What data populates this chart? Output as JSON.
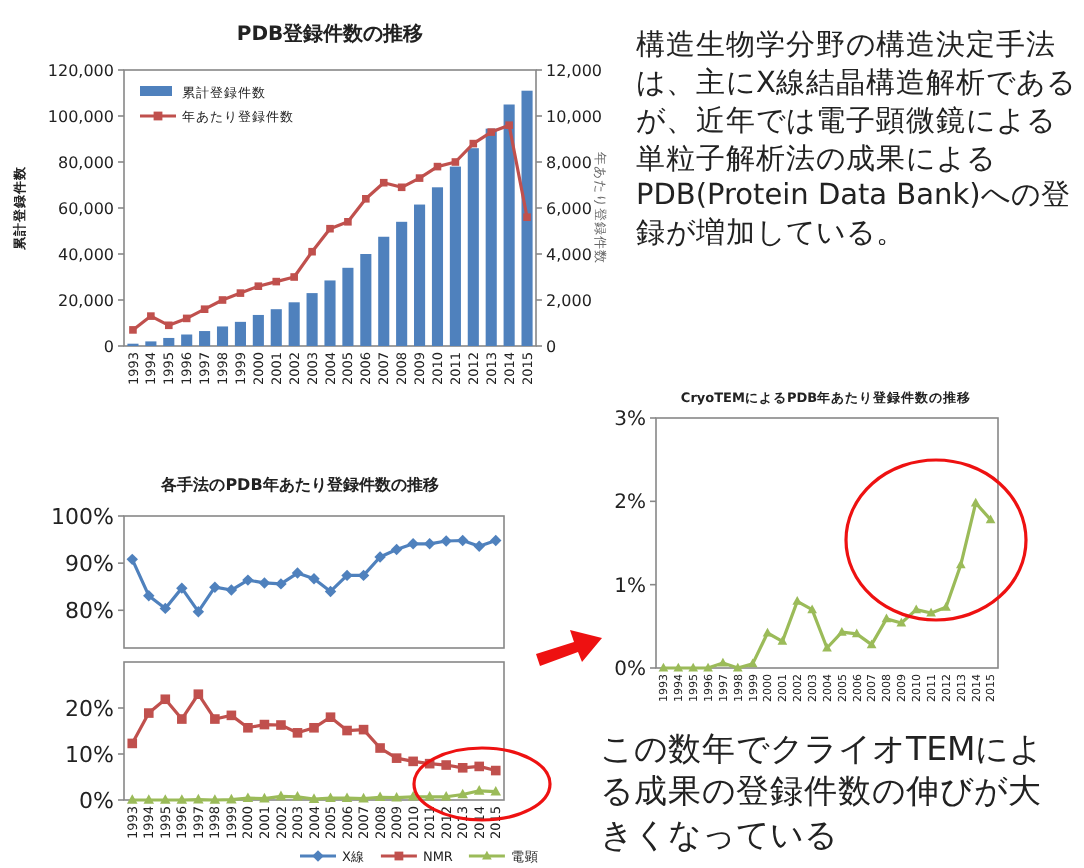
{
  "chart_data": [
    {
      "type": "bar",
      "title": "PDB登録件数の推移",
      "ylabel": "累計登録件数",
      "y2label": "年あたり登録件数",
      "categories": [
        "1993",
        "1994",
        "1995",
        "1996",
        "1997",
        "1998",
        "1999",
        "2000",
        "2001",
        "2002",
        "2003",
        "2004",
        "2005",
        "2006",
        "2007",
        "2008",
        "2009",
        "2010",
        "2011",
        "2012",
        "2013",
        "2014",
        "2015"
      ],
      "series": [
        {
          "name": "累計登録件数",
          "type": "bar",
          "color": "#4f81bd",
          "values": [
            1000,
            2000,
            3500,
            5000,
            6500,
            8500,
            10500,
            13500,
            16000,
            19000,
            23000,
            28500,
            34000,
            40000,
            47500,
            54000,
            61500,
            69000,
            78000,
            86000,
            94500,
            105000,
            111000
          ]
        },
        {
          "name": "年あたり登録件数",
          "type": "line",
          "axis": "y2",
          "color": "#c0504d",
          "marker": "square",
          "values": [
            700,
            1300,
            900,
            1200,
            1600,
            2000,
            2300,
            2600,
            2800,
            3000,
            4100,
            5100,
            5400,
            6400,
            7100,
            6900,
            7300,
            7800,
            8000,
            8800,
            9300,
            9600,
            5600
          ]
        }
      ],
      "ylim": [
        0,
        120000
      ],
      "yticks": [
        0,
        {
          "value": 20000,
          "label": "20,000"
        },
        {
          "value": 40000,
          "label": "40,000"
        },
        {
          "value": 60000,
          "label": "60,000"
        },
        {
          "value": 80000,
          "label": "80,000"
        },
        {
          "value": 100000,
          "label": "100,000"
        },
        {
          "value": 120000,
          "label": "120,000"
        }
      ],
      "y2lim": [
        0,
        12000
      ],
      "y2ticks": [
        0,
        {
          "value": 2000,
          "label": "2,000"
        },
        {
          "value": 4000,
          "label": "4,000"
        },
        {
          "value": 6000,
          "label": "6,000"
        },
        {
          "value": 8000,
          "label": "8,000"
        },
        {
          "value": 10000,
          "label": "10,000"
        },
        {
          "value": 12000,
          "label": "12,000"
        }
      ],
      "legend": "top left"
    },
    {
      "type": "line",
      "title": "各手法のPDB年あたり登録件数の推移",
      "categories": [
        "1993",
        "1994",
        "1995",
        "1996",
        "1997",
        "1998",
        "1999",
        "2000",
        "2001",
        "2002",
        "2003",
        "2004",
        "2005",
        "2006",
        "2007",
        "2008",
        "2009",
        "2010",
        "2011",
        "2012",
        "2013",
        "2014",
        "2015"
      ],
      "series": [
        {
          "name": "X線",
          "color": "#4f81bd",
          "marker": "diamond",
          "values": [
            90.8,
            83.1,
            80.4,
            84.7,
            79.7,
            84.9,
            84.3,
            86.4,
            85.8,
            85.6,
            87.9,
            86.7,
            84.0,
            87.4,
            87.4,
            91.3,
            92.9,
            94.1,
            94.1,
            94.7,
            94.8,
            93.6,
            94.8
          ]
        }
      ],
      "ylim": [
        72,
        100
      ],
      "yticks": [
        {
          "value": 80,
          "label": "80%"
        },
        {
          "value": 90,
          "label": "90%"
        },
        {
          "value": 100,
          "label": "100%"
        }
      ],
      "tick_labels": "y",
      "legend": "bottom"
    },
    {
      "type": "line",
      "categories": [
        "1993",
        "1994",
        "1995",
        "1996",
        "1997",
        "1998",
        "1999",
        "2000",
        "2001",
        "2002",
        "2003",
        "2004",
        "2005",
        "2006",
        "2007",
        "2008",
        "2009",
        "2010",
        "2011",
        "2012",
        "2013",
        "2014",
        "2015"
      ],
      "series": [
        {
          "name": "NMR",
          "color": "#c0504d",
          "marker": "square",
          "values": [
            12.3,
            18.9,
            21.9,
            17.6,
            23.0,
            17.6,
            18.4,
            15.7,
            16.4,
            16.3,
            14.6,
            15.7,
            18.0,
            15.1,
            15.3,
            11.3,
            9.1,
            8.4,
            7.9,
            7.6,
            7.0,
            7.3,
            6.4
          ]
        },
        {
          "name": "電顕",
          "color": "#9bbb59",
          "marker": "triangle",
          "values": [
            0,
            0,
            0,
            0,
            0.1,
            0,
            0.1,
            0.4,
            0.3,
            0.8,
            0.7,
            0.2,
            0.4,
            0.4,
            0.3,
            0.6,
            0.5,
            0.7,
            0.7,
            0.7,
            1.2,
            2.0,
            1.8
          ]
        }
      ],
      "ylim": [
        0,
        30
      ],
      "yticks": [
        {
          "value": 0,
          "label": "0%"
        },
        {
          "value": 10,
          "label": "10%"
        },
        {
          "value": 20,
          "label": "20%"
        }
      ],
      "legend": "bottom"
    },
    {
      "type": "line",
      "title": "CryoTEMによるPDB年あたり登録件数の推移",
      "categories": [
        "1993",
        "1994",
        "1995",
        "1996",
        "1997",
        "1998",
        "1999",
        "2000",
        "2001",
        "2002",
        "2003",
        "2004",
        "2005",
        "2006",
        "2007",
        "2008",
        "2009",
        "2010",
        "2011",
        "2012",
        "2013",
        "2014",
        "2015"
      ],
      "series": [
        {
          "color": "#9bbb59",
          "marker": "triangle",
          "values": [
            0,
            0,
            0,
            0,
            0.06,
            0,
            0.05,
            0.42,
            0.32,
            0.8,
            0.7,
            0.24,
            0.43,
            0.41,
            0.28,
            0.59,
            0.54,
            0.7,
            0.66,
            0.73,
            1.24,
            1.98,
            1.78
          ]
        }
      ],
      "ylim": [
        0,
        3
      ],
      "yticks": [
        {
          "value": 0,
          "label": "0%"
        },
        {
          "value": 1,
          "label": "1%"
        },
        {
          "value": 2,
          "label": "2%"
        },
        {
          "value": 3,
          "label": "3%"
        }
      ]
    },
    {
      "type": "other",
      "annotations": [
        "構造生物学分野の構造決定手法は、主にX線結晶構造解析であるが、近年では電子顕微鏡による単粒子解析法の成果によるPDB(Protein Data Bank)への登録が増加している。",
        "この数年でクライオTEMによる成果の登録件数の伸びが大きくなっている"
      ]
    }
  ]
}
